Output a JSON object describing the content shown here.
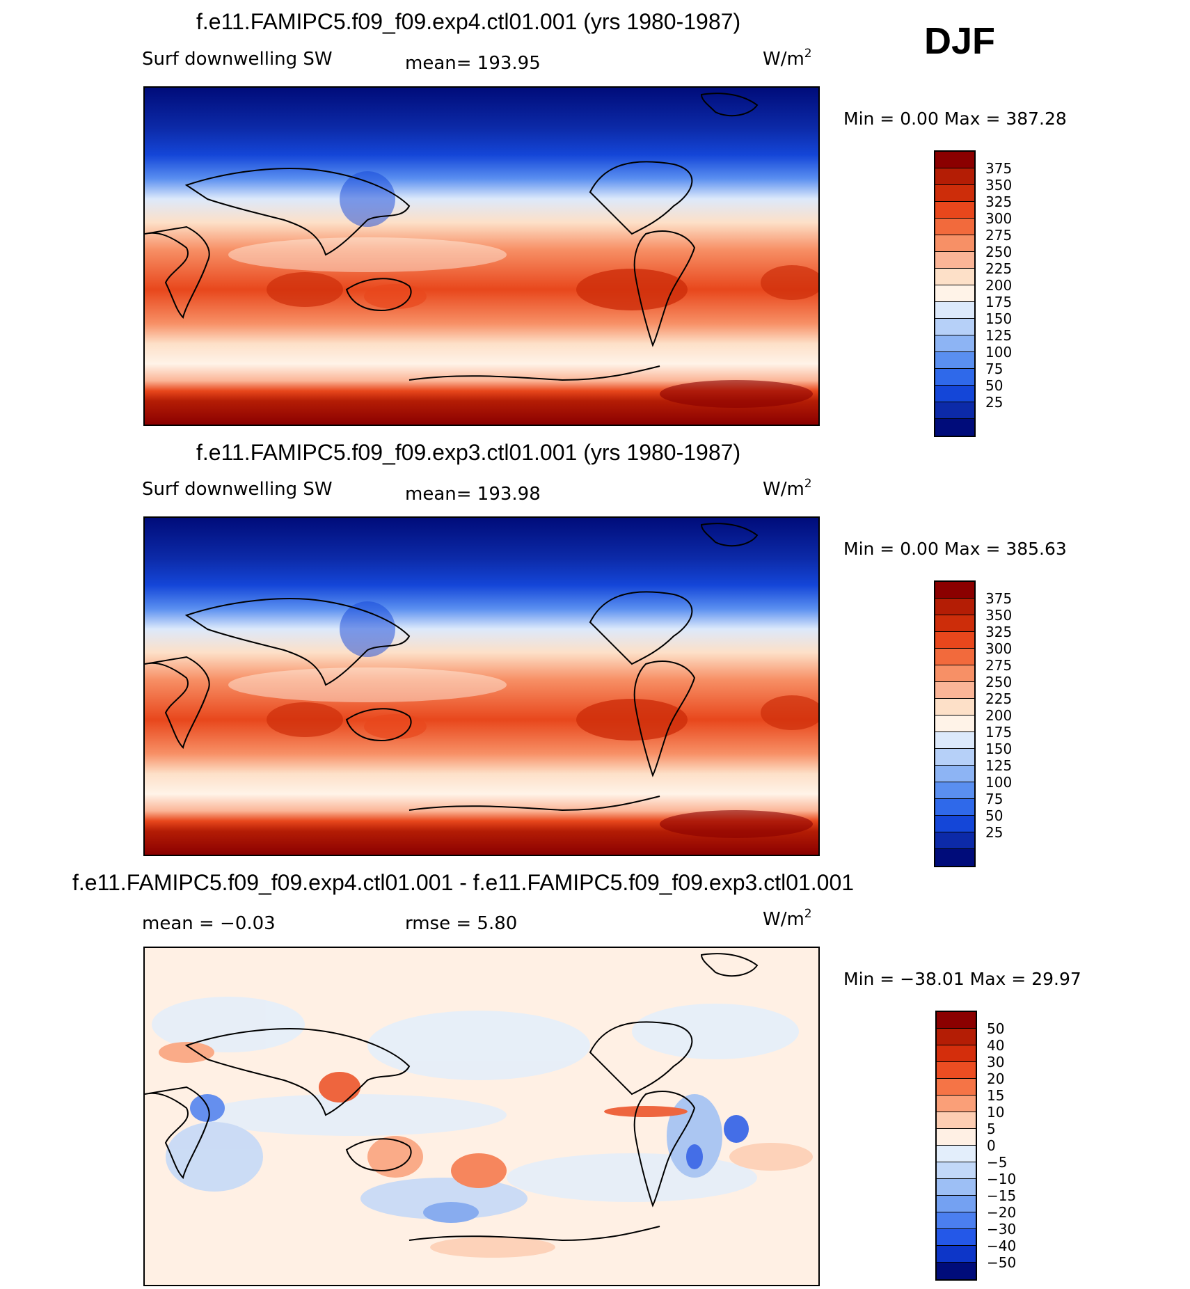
{
  "season": "DJF",
  "units_base": "W/m",
  "units_exp": "2",
  "panels": [
    {
      "id": "exp4",
      "title": "f.e11.FAMIPC5.f09_f09.exp4.ctl01.001 (yrs 1980-1987)",
      "variable": "Surf downwelling SW",
      "stat": "mean= 193.95",
      "stat2": "",
      "minmax": "Min =    0.00 Max = 387.28",
      "levels": [
        "375",
        "350",
        "325",
        "300",
        "275",
        "250",
        "225",
        "200",
        "175",
        "150",
        "125",
        "100",
        "75",
        "50",
        "25"
      ],
      "colors": [
        "#8b0000",
        "#b41d05",
        "#cd2d0a",
        "#e8471c",
        "#f26a3c",
        "#f79066",
        "#fbb597",
        "#fde0c8",
        "#fff3e8",
        "#dce9fb",
        "#b6d0f8",
        "#8db4f4",
        "#5a8ff0",
        "#2f69ea",
        "#1446d8",
        "#0c2aa8",
        "#000c7a"
      ]
    },
    {
      "id": "exp3",
      "title": "f.e11.FAMIPC5.f09_f09.exp3.ctl01.001 (yrs 1980-1987)",
      "variable": "Surf downwelling SW",
      "stat": "mean= 193.98",
      "stat2": "",
      "minmax": "Min =    0.00 Max = 385.63",
      "levels": [
        "375",
        "350",
        "325",
        "300",
        "275",
        "250",
        "225",
        "200",
        "175",
        "150",
        "125",
        "100",
        "75",
        "50",
        "25"
      ],
      "colors": [
        "#8b0000",
        "#b41d05",
        "#cd2d0a",
        "#e8471c",
        "#f26a3c",
        "#f79066",
        "#fbb597",
        "#fde0c8",
        "#fff3e8",
        "#dce9fb",
        "#b6d0f8",
        "#8db4f4",
        "#5a8ff0",
        "#2f69ea",
        "#1446d8",
        "#0c2aa8",
        "#000c7a"
      ]
    },
    {
      "id": "diff",
      "title": "f.e11.FAMIPC5.f09_f09.exp4.ctl01.001 - f.e11.FAMIPC5.f09_f09.exp3.ctl01.001",
      "variable": "",
      "stat": "mean =   −0.03",
      "stat2": "rmse =    5.80",
      "minmax": "Min = −38.01 Max =   29.97",
      "levels": [
        "50",
        "40",
        "30",
        "20",
        "15",
        "10",
        "5",
        "0",
        "−5",
        "−10",
        "−15",
        "−20",
        "−30",
        "−40",
        "−50"
      ],
      "colors": [
        "#8b0000",
        "#b41d05",
        "#d42e0c",
        "#ec4d22",
        "#f57446",
        "#fa9f78",
        "#fdcdb2",
        "#fff0e4",
        "#e3eefb",
        "#c2d8f8",
        "#9dbff5",
        "#74a1f2",
        "#4b7ff0",
        "#2458e8",
        "#0d36c8",
        "#000c7a"
      ]
    }
  ],
  "chart_data": [
    {
      "type": "heatmap",
      "title": "f.e11.FAMIPC5.f09_f09.exp4.ctl01.001 (yrs 1980-1987)",
      "variable": "Surf downwelling SW",
      "units": "W/m2",
      "season": "DJF",
      "mean": 193.95,
      "min": 0.0,
      "max": 387.28,
      "contour_levels": [
        25,
        50,
        75,
        100,
        125,
        150,
        175,
        200,
        225,
        250,
        275,
        300,
        325,
        350,
        375
      ]
    },
    {
      "type": "heatmap",
      "title": "f.e11.FAMIPC5.f09_f09.exp3.ctl01.001 (yrs 1980-1987)",
      "variable": "Surf downwelling SW",
      "units": "W/m2",
      "season": "DJF",
      "mean": 193.98,
      "min": 0.0,
      "max": 385.63,
      "contour_levels": [
        25,
        50,
        75,
        100,
        125,
        150,
        175,
        200,
        225,
        250,
        275,
        300,
        325,
        350,
        375
      ]
    },
    {
      "type": "heatmap",
      "title": "f.e11.FAMIPC5.f09_f09.exp4.ctl01.001 - f.e11.FAMIPC5.f09_f09.exp3.ctl01.001",
      "units": "W/m2",
      "mean": -0.03,
      "rmse": 5.8,
      "min": -38.01,
      "max": 29.97,
      "contour_levels": [
        -50,
        -40,
        -30,
        -20,
        -15,
        -10,
        -5,
        0,
        5,
        10,
        15,
        20,
        30,
        40,
        50
      ]
    }
  ]
}
